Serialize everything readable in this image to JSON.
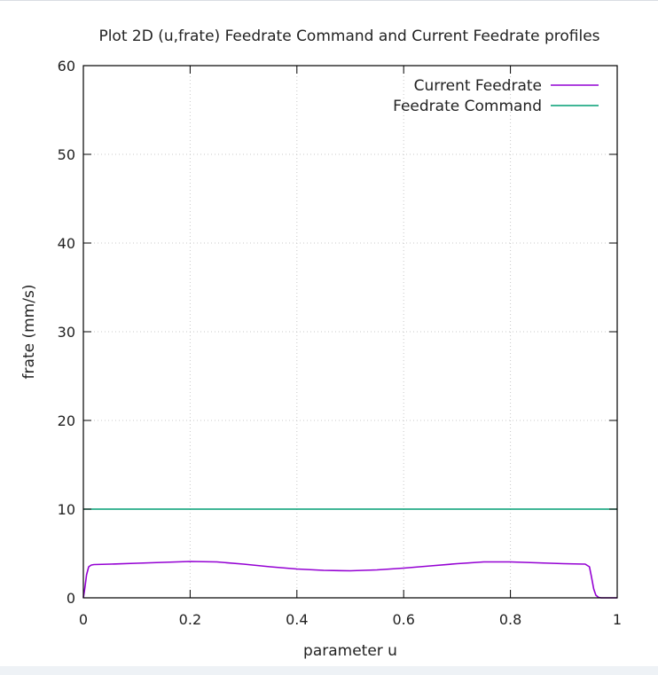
{
  "chart_data": {
    "type": "line",
    "title": "Plot 2D (u,frate) Feedrate Command and Current Feedrate profiles",
    "xlabel": "parameter u",
    "ylabel": "frate (mm/s)",
    "xlim": [
      0,
      1
    ],
    "ylim": [
      0,
      60
    ],
    "xticks": [
      0,
      0.2,
      0.4,
      0.6,
      0.8,
      1
    ],
    "xtick_labels": [
      "0",
      "0.2",
      "0.4",
      "0.6",
      "0.8",
      "1"
    ],
    "yticks": [
      0,
      10,
      20,
      30,
      40,
      50,
      60
    ],
    "ytick_labels": [
      "0",
      "10",
      "20",
      "30",
      "40",
      "50",
      "60"
    ],
    "grid": true,
    "legend_position": "top-right",
    "series": [
      {
        "name": "Current Feedrate",
        "color": "#9400d3",
        "x": [
          0,
          0.003,
          0.006,
          0.01,
          0.015,
          0.02,
          0.05,
          0.1,
          0.15,
          0.2,
          0.25,
          0.3,
          0.35,
          0.4,
          0.45,
          0.5,
          0.55,
          0.6,
          0.65,
          0.7,
          0.75,
          0.8,
          0.85,
          0.9,
          0.94,
          0.948,
          0.952,
          0.956,
          0.96,
          0.965,
          0.97,
          1
        ],
        "y": [
          0,
          1.2,
          2.6,
          3.5,
          3.7,
          3.75,
          3.8,
          3.9,
          4.0,
          4.1,
          4.05,
          3.8,
          3.5,
          3.25,
          3.1,
          3.05,
          3.15,
          3.35,
          3.6,
          3.85,
          4.05,
          4.05,
          3.95,
          3.85,
          3.8,
          3.5,
          2.3,
          1.0,
          0.3,
          0.05,
          0,
          0
        ]
      },
      {
        "name": "Feedrate Command",
        "color": "#009e73",
        "x": [
          0,
          1
        ],
        "y": [
          10,
          10
        ]
      }
    ]
  }
}
